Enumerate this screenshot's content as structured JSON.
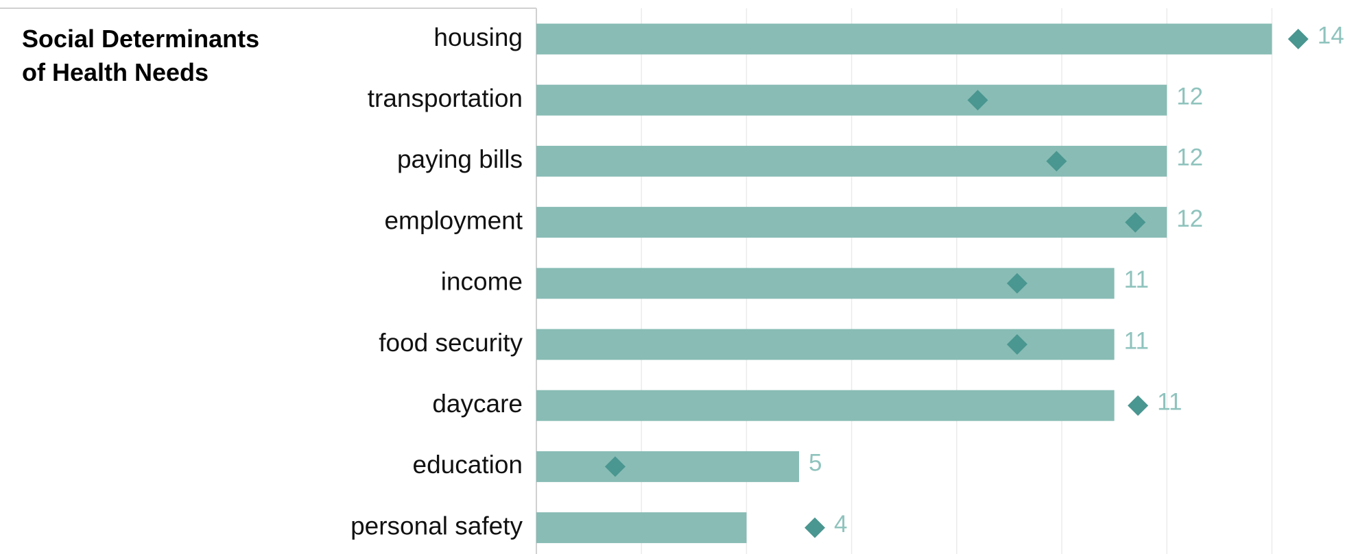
{
  "chart_data": {
    "type": "bar",
    "title": "Social Determinants of Health Needs",
    "categories": [
      "housing",
      "transportation",
      "paying bills",
      "employment",
      "income",
      "food security",
      "daycare",
      "education",
      "personal safety"
    ],
    "series": [
      {
        "color": "#88bcb5",
        "values": [
          14,
          12,
          12,
          12,
          11,
          11,
          11,
          5,
          4
        ]
      },
      {
        "type": "marker",
        "color": "#4a9690",
        "values": [
          14.5,
          8.4,
          9.9,
          11.4,
          9.15,
          9.15,
          11.45,
          1.5,
          5.3
        ]
      }
    ],
    "xlim": [
      0,
      15.6
    ],
    "xticks": [
      0,
      2,
      4,
      6,
      8,
      10,
      12,
      14
    ],
    "grid": true,
    "value_label_color": "#8fc3bd"
  }
}
